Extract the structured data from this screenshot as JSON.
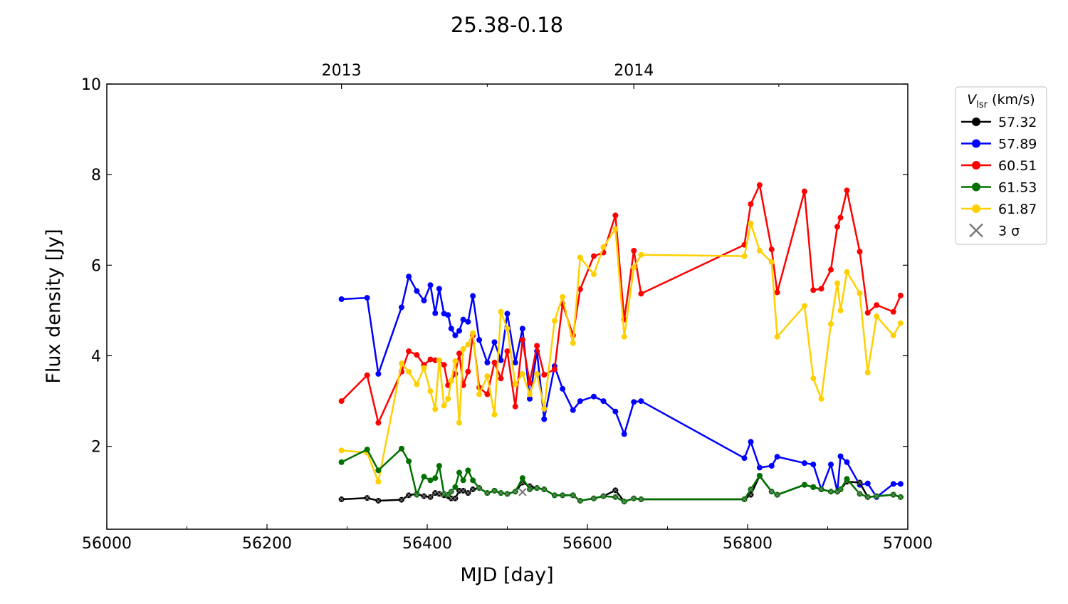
{
  "chart_data": {
    "type": "line",
    "title": "25.38-0.18",
    "xlabel": "MJD [day]",
    "ylabel": "Flux density [Jy]",
    "xlim": [
      56000,
      57000
    ],
    "ylim": [
      0.17,
      10
    ],
    "xticks": [
      56000,
      56200,
      56400,
      56600,
      56800,
      57000
    ],
    "xtick_labels": [
      "56000",
      "56200",
      "56400",
      "56600",
      "56800",
      "57000"
    ],
    "yticks": [
      2,
      4,
      6,
      8,
      10
    ],
    "ytick_labels": [
      "2",
      "4",
      "6",
      "8",
      "10"
    ],
    "top_axis": {
      "ticks": [
        56293,
        56658
      ],
      "tick_labels": [
        "2013",
        "2014"
      ],
      "minor_ticks": [
        56475,
        56839
      ]
    },
    "grid": false,
    "legend": {
      "placement": "outside-top-right",
      "title": "V",
      "title_sub": "lsr",
      "title_unit": " (km/s)",
      "entries": [
        "57.32",
        "57.89",
        "60.51",
        "61.53",
        "61.87"
      ],
      "sigma_label": "3 σ"
    },
    "x": [
      56293,
      56325,
      56339,
      56368,
      56377,
      56387,
      56396,
      56404,
      56410,
      56415,
      56421,
      56426,
      56430,
      56435,
      56440,
      56445,
      56451,
      56457,
      56465,
      56475,
      56484,
      56492,
      56500,
      56510,
      56519,
      56528,
      56537,
      56546,
      56559,
      56569,
      56582,
      56591,
      56608,
      56620,
      56635,
      56646,
      56658,
      56667,
      56796,
      56804,
      56815,
      56830,
      56837,
      56871,
      56882,
      56892,
      56904,
      56912,
      56916,
      56924,
      56940,
      56950,
      56961,
      56982,
      56991
    ],
    "series": [
      {
        "name": "57.32",
        "color": "#000000",
        "upper_limit_markers": true,
        "values": [
          0.83,
          0.86,
          0.8,
          0.82,
          0.92,
          0.95,
          0.9,
          0.88,
          0.97,
          0.95,
          0.92,
          0.9,
          0.85,
          0.85,
          1.02,
          1.02,
          0.97,
          1.05,
          1.08,
          0.97,
          1.02,
          0.97,
          0.95,
          1.0,
          1.2,
          1.12,
          1.08,
          1.05,
          0.92,
          0.92,
          0.92,
          0.8,
          0.85,
          0.9,
          1.03,
          0.78,
          0.85,
          0.83,
          0.83,
          0.93,
          1.35,
          1.0,
          0.93,
          1.15,
          1.1,
          1.05,
          1.0,
          1.0,
          1.05,
          1.22,
          1.2,
          0.88,
          0.9,
          0.93,
          0.88
        ]
      },
      {
        "name": "57.89",
        "color": "#0000ff",
        "values": [
          5.25,
          5.28,
          3.6,
          5.07,
          5.75,
          5.43,
          5.22,
          5.56,
          4.94,
          5.48,
          4.93,
          4.9,
          4.6,
          4.45,
          4.55,
          4.8,
          4.75,
          5.32,
          4.35,
          3.85,
          4.3,
          3.9,
          4.93,
          3.85,
          4.6,
          3.05,
          4.1,
          2.6,
          3.77,
          3.27,
          2.8,
          3.0,
          3.1,
          3.0,
          2.77,
          2.27,
          2.98,
          3.0,
          1.74,
          2.1,
          1.53,
          1.57,
          1.77,
          1.63,
          1.6,
          1.05,
          1.6,
          1.0,
          1.78,
          1.65,
          1.15,
          1.18,
          0.88,
          1.17,
          1.17
        ]
      },
      {
        "name": "60.51",
        "color": "#ff0000",
        "values": [
          3.0,
          3.57,
          2.52,
          3.65,
          4.1,
          4.02,
          3.8,
          3.92,
          3.9,
          3.9,
          3.8,
          3.35,
          3.45,
          3.6,
          4.05,
          3.35,
          3.65,
          4.45,
          3.3,
          3.15,
          3.85,
          3.5,
          4.1,
          2.88,
          4.35,
          3.4,
          4.22,
          3.58,
          3.7,
          5.15,
          4.45,
          5.47,
          6.2,
          6.28,
          7.1,
          4.8,
          6.32,
          5.37,
          6.45,
          7.35,
          7.77,
          6.35,
          5.4,
          7.63,
          5.45,
          5.48,
          5.9,
          6.85,
          7.05,
          7.65,
          6.3,
          4.95,
          5.12,
          4.97,
          5.33
        ]
      },
      {
        "name": "61.53",
        "color": "#007000",
        "values": [
          1.65,
          1.93,
          1.47,
          1.95,
          1.67,
          0.93,
          1.33,
          1.25,
          1.3,
          1.57,
          0.95,
          0.93,
          1.0,
          1.1,
          1.42,
          1.25,
          1.47,
          1.25,
          1.08,
          0.97,
          1.02,
          0.97,
          0.95,
          1.0,
          1.3,
          1.05,
          1.08,
          1.05,
          0.92,
          0.92,
          0.92,
          0.8,
          0.85,
          0.9,
          0.88,
          0.78,
          0.85,
          0.83,
          0.83,
          1.05,
          1.35,
          1.0,
          0.93,
          1.15,
          1.1,
          1.05,
          1.0,
          1.0,
          1.05,
          1.28,
          0.95,
          0.88,
          0.9,
          0.93,
          0.88
        ]
      },
      {
        "name": "61.87",
        "color": "#ffd000",
        "values": [
          1.91,
          1.86,
          1.22,
          3.83,
          3.65,
          3.37,
          3.73,
          3.22,
          2.82,
          3.9,
          2.9,
          3.05,
          3.45,
          3.88,
          2.52,
          4.15,
          4.25,
          4.5,
          3.15,
          3.55,
          2.7,
          4.97,
          4.6,
          3.37,
          3.6,
          3.15,
          3.6,
          2.83,
          4.77,
          5.3,
          4.28,
          6.17,
          5.8,
          6.4,
          6.8,
          4.42,
          5.95,
          6.23,
          6.2,
          6.92,
          6.32,
          6.07,
          4.42,
          5.1,
          3.5,
          3.05,
          4.7,
          5.6,
          5.0,
          5.85,
          5.38,
          3.63,
          4.87,
          4.45,
          4.72
        ]
      }
    ],
    "three_sigma_points": [
      {
        "x": 56519,
        "y": 0.99
      }
    ],
    "three_sigma_color": "#777777"
  }
}
